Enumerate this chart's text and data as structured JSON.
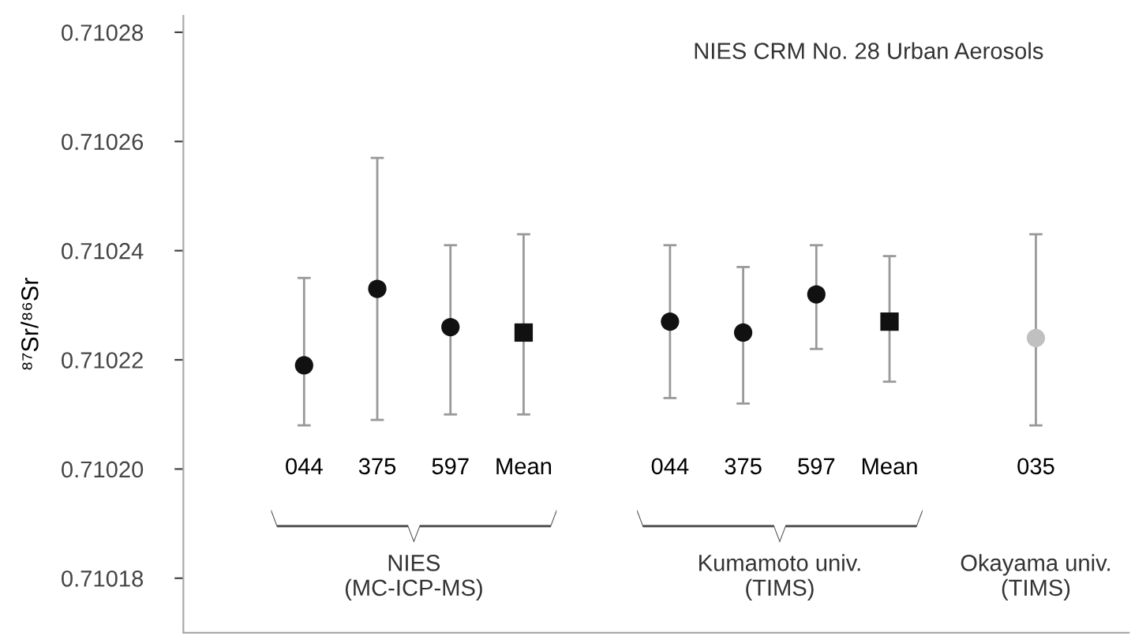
{
  "chart_data": {
    "type": "scatter",
    "ylabel": "⁸⁷Sr/⁸⁶Sr",
    "categories": [
      "044",
      "375",
      "597",
      "Mean",
      null,
      "044",
      "375",
      "597",
      "Mean",
      null,
      "035"
    ],
    "series": [
      {
        "color": "#111111",
        "marker": "circle",
        "values": [
          0.710219,
          0.710233,
          0.710226,
          null,
          null,
          0.710227,
          0.710225,
          0.710232,
          null,
          null,
          null
        ],
        "errors": [
          [
            0.710208,
            0.710235
          ],
          [
            0.710209,
            0.710257
          ],
          [
            0.71021,
            0.710241
          ],
          null,
          null,
          [
            0.710213,
            0.710241
          ],
          [
            0.710212,
            0.710237
          ],
          [
            0.710222,
            0.710241
          ],
          null,
          null,
          null
        ]
      },
      {
        "color": "#111111",
        "marker": "square",
        "values": [
          null,
          null,
          null,
          0.710225,
          null,
          null,
          null,
          null,
          0.710227,
          null,
          null
        ],
        "errors": [
          null,
          null,
          null,
          [
            0.71021,
            0.710243
          ],
          null,
          null,
          null,
          null,
          [
            0.710216,
            0.710239
          ],
          null,
          null
        ]
      },
      {
        "color": "#c0c0c0",
        "marker": "circle",
        "values": [
          null,
          null,
          null,
          null,
          null,
          null,
          null,
          null,
          null,
          null,
          0.710224
        ],
        "errors": [
          null,
          null,
          null,
          null,
          null,
          null,
          null,
          null,
          null,
          null,
          [
            0.710208,
            0.710243
          ]
        ]
      }
    ],
    "ylim": [
      0.71017,
      0.710283
    ],
    "yticks": [
      0.71018,
      {
        "value": 0.7102,
        "label": "0.71020"
      },
      0.71022,
      0.71024,
      0.71026,
      0.71028
    ],
    "annotations": [
      "NIES CRM No. 28 Urban Aerosols",
      "NIES\n(MC-ICP-MS)",
      "Kumamoto univ.\n(TIMS)",
      "Okayama univ.\n(TIMS)"
    ],
    "grid": false,
    "legend": false
  }
}
